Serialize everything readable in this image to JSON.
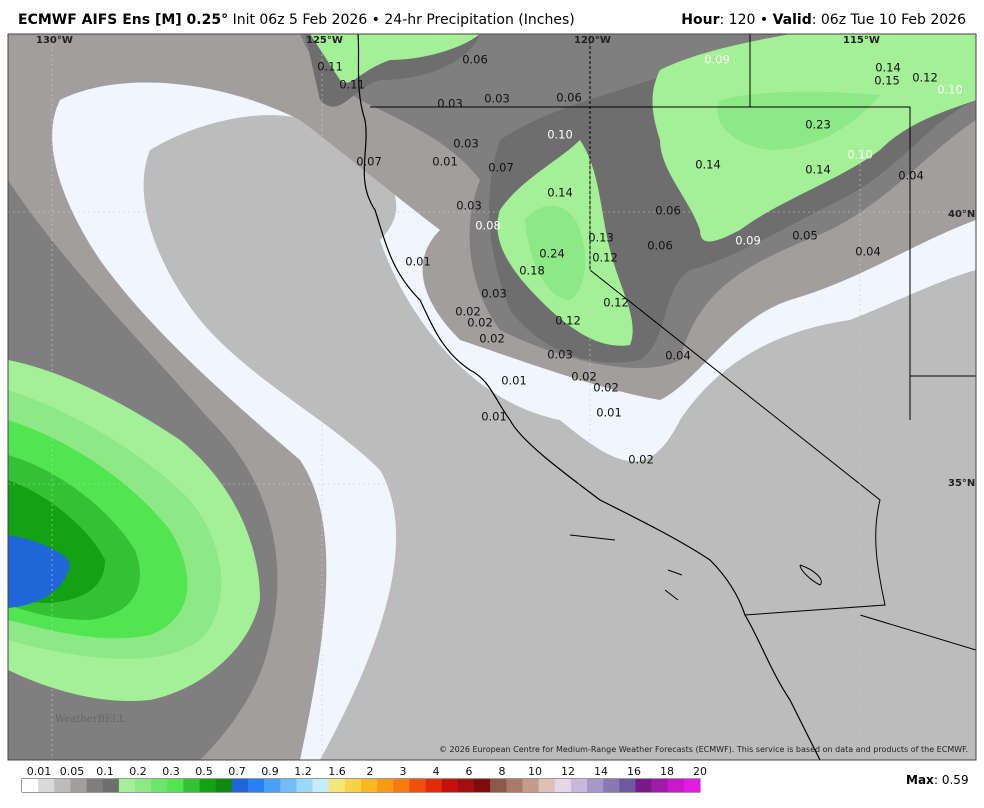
{
  "header": {
    "model": "ECMWF AIFS Ens [M] 0.25°",
    "description": "Init 06z 5 Feb 2026 • 24-hr Precipitation (Inches)",
    "hour_label": "Hour",
    "hour": ": 120 •",
    "valid_label": "Valid",
    "valid": ": 06z Tue 10 Feb 2026"
  },
  "graticule_labels": [
    "130°W",
    "125°W",
    "120°W",
    "115°W",
    "40°N",
    "35°N"
  ],
  "map_labels": [
    "0.11",
    "0.11",
    "0.06",
    "0.03",
    "0.06",
    "0.03",
    "0.09",
    "0.14",
    "0.15",
    "0.12",
    "0.10",
    "0.10",
    "0.03",
    "0.23",
    "0.10",
    "0.07",
    "0.01",
    "0.07",
    "0.14",
    "0.14",
    "0.04",
    "0.14",
    "0.03",
    "0.06",
    "0.08",
    "0.13",
    "0.09",
    "0.05",
    "0.06",
    "0.24",
    "0.12",
    "0.04",
    "0.01",
    "0.18",
    "0.03",
    "0.12",
    "0.02",
    "0.02",
    "0.12",
    "0.02",
    "0.03",
    "0.04",
    "0.01",
    "0.02",
    "0.02",
    "0.01",
    "0.01",
    "0.02"
  ],
  "colorbar_labels": [
    "0.01",
    "0.05",
    "0.1",
    "0.2",
    "0.3",
    "0.5",
    "0.7",
    "0.9",
    "1.2",
    "1.6",
    "2",
    "3",
    "4",
    "6",
    "8",
    "10",
    "12",
    "14",
    "16",
    "18",
    "20"
  ],
  "copyright": "© 2026 European Centre for Medium-Range Weather Forecasts (ECMWF). This service is based on data and products of the ECMWF.",
  "logo": "WeatherBELL",
  "max": {
    "label": "Max",
    "value": ": 0.59"
  }
}
